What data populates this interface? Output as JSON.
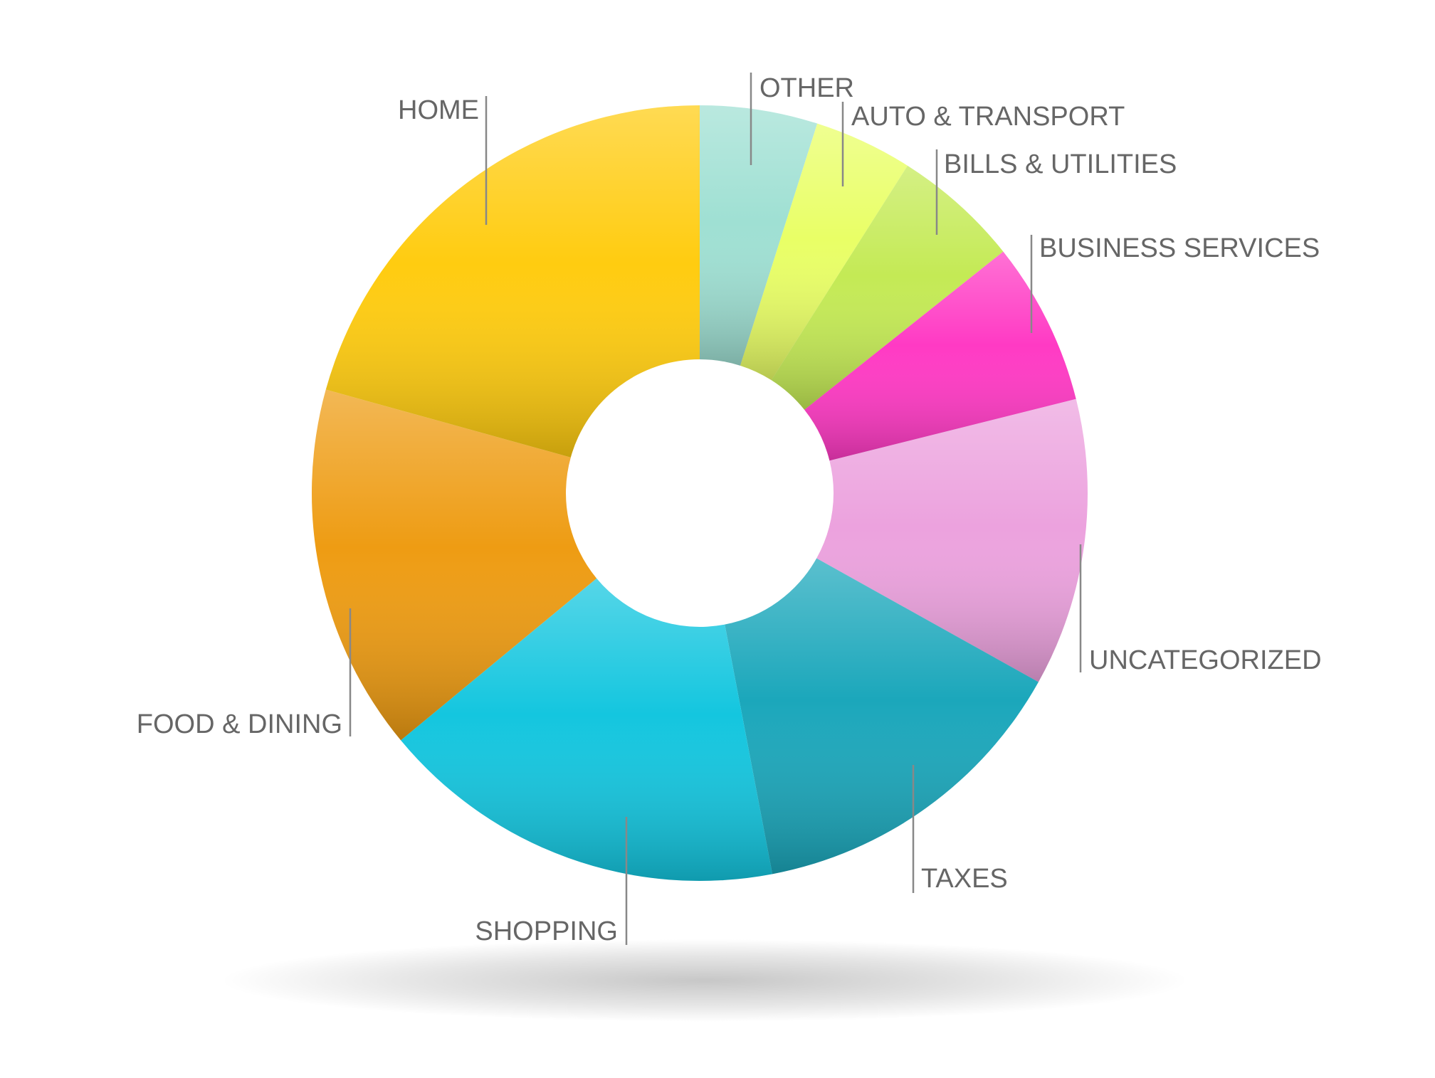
{
  "chart_data": {
    "type": "pie",
    "title": "",
    "donut": true,
    "slices": [
      {
        "label": "OTHER",
        "value": 4.9,
        "color": "#9fe0d3"
      },
      {
        "label": "AUTO & TRANSPORT",
        "value": 4.1,
        "color": "#e9ff66"
      },
      {
        "label": "BILLS & UTILITIES",
        "value": 5.3,
        "color": "#c4ea55"
      },
      {
        "label": "BUSINESS SERVICES",
        "value": 6.8,
        "color": "#ff3ac4"
      },
      {
        "label": "UNCATEGORIZED",
        "value": 12.0,
        "color": "#eca2de"
      },
      {
        "label": "TAXES",
        "value": 13.9,
        "color": "#1ba7bb"
      },
      {
        "label": "SHOPPING",
        "value": 17.0,
        "color": "#14c6df"
      },
      {
        "label": "FOOD & DINING",
        "value": 15.3,
        "color": "#ee9c13"
      },
      {
        "label": "HOME",
        "value": 20.7,
        "color": "#ffcc10"
      }
    ],
    "label_color": "#666666",
    "leader_line_color": "#888888"
  }
}
